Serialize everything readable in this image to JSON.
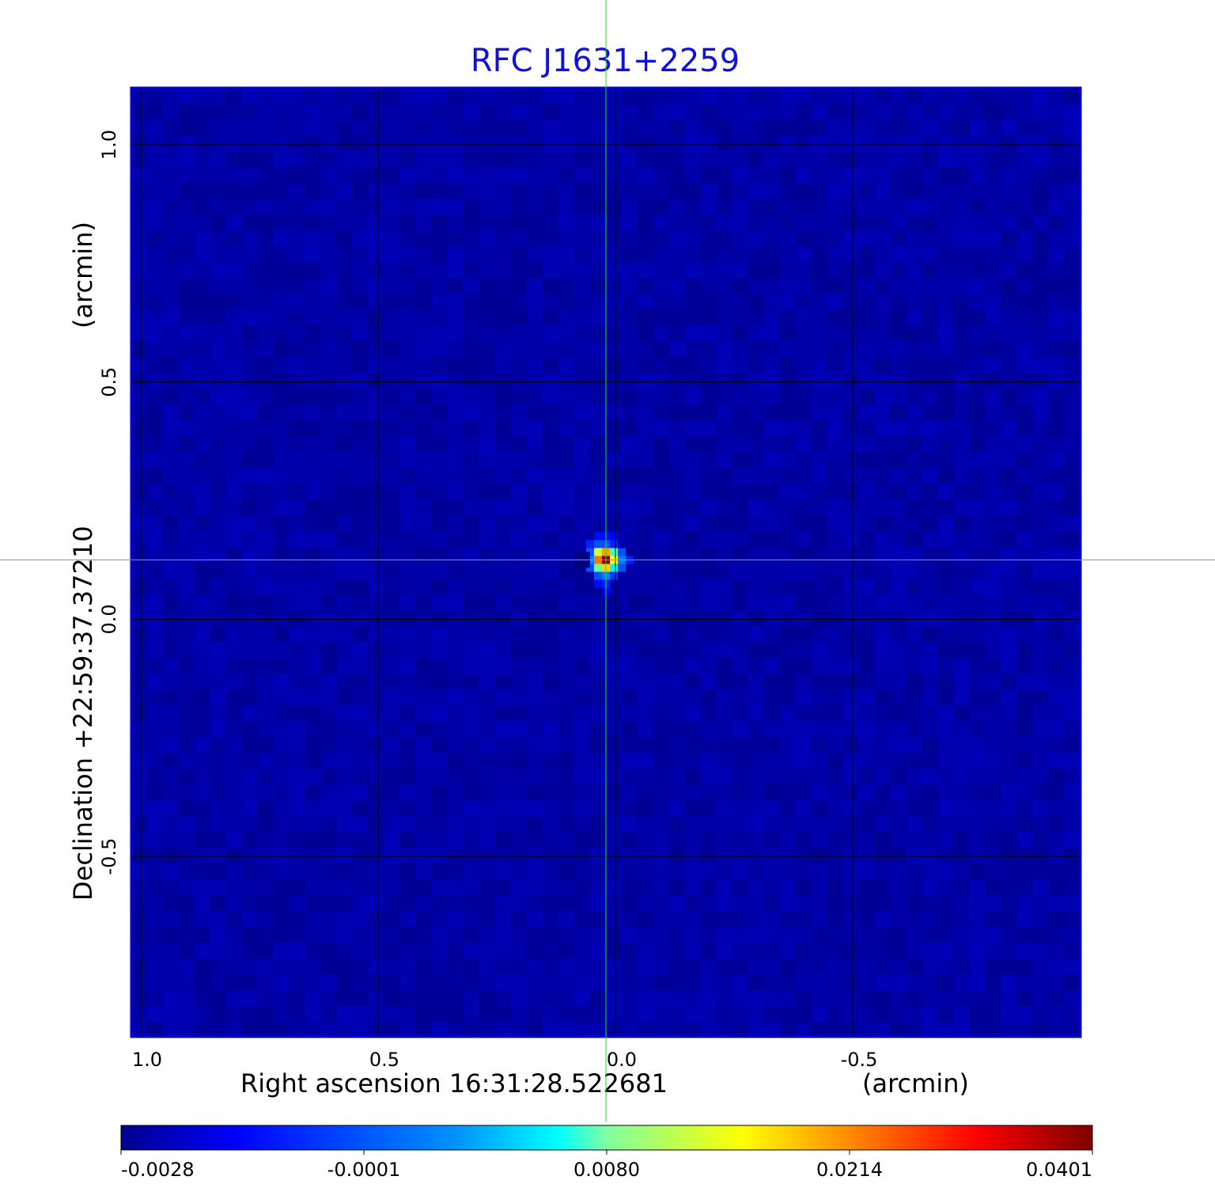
{
  "chart_data": {
    "type": "heatmap",
    "title": "RFC J1631+2259",
    "xlabel": "Right ascension  16:31:28.522681",
    "xlabel_unit": "(arcmin)",
    "ylabel": "Declination  +22:59:37.37210",
    "ylabel_unit": "(arcmin)",
    "x_ticks": [
      1.0,
      0.5,
      0.0,
      -0.5
    ],
    "x_tick_labels": [
      "1.0",
      "0.5",
      "0.0",
      "-0.5"
    ],
    "y_ticks": [
      1.0,
      0.5,
      0.0,
      -0.5
    ],
    "y_tick_labels": [
      "1.0",
      "0.5",
      "0.0",
      "-0.5"
    ],
    "xlim": [
      1.02,
      -0.98
    ],
    "ylim": [
      -0.88,
      1.12
    ],
    "x_reversed": true,
    "grid": true,
    "crosshair": {
      "x": 0.02,
      "y": 0.125,
      "color": "#22dd22"
    },
    "source": {
      "peak_position": [
        0.02,
        0.125
      ],
      "peak_value": 0.0401,
      "negative_lobes": [
        {
          "position": [
            0.07,
            0.125
          ],
          "value": -0.0028
        },
        {
          "position": [
            -0.045,
            0.035
          ],
          "value": -0.002
        },
        {
          "position": [
            -0.02,
            0.21
          ],
          "value": -0.0012
        }
      ]
    },
    "background_value": -0.0012,
    "colormap": "jet",
    "colorbar": {
      "min": -0.0028,
      "max": 0.0401,
      "ticks": [
        "-0.0028",
        "-0.0001",
        "0.0080",
        "0.0214",
        "0.0401"
      ],
      "tick_positions": [
        0.0,
        0.25,
        0.5,
        0.75,
        1.0
      ]
    },
    "colors": {
      "title": "#1111dd",
      "frame": "#0000cc",
      "grid": "#000000",
      "crosshair": "#22dd22",
      "background_map": "#1a9bff"
    }
  }
}
